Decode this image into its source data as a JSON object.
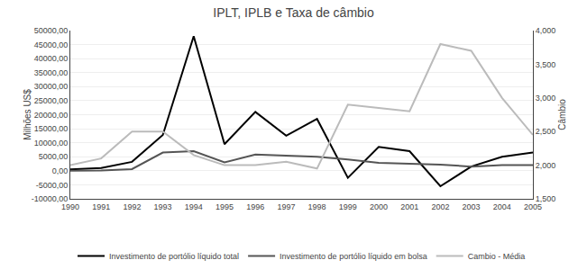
{
  "chart_data": {
    "type": "line",
    "title": "IPLT, IPLB e Taxa de câmbio",
    "x": [
      1990,
      1991,
      1992,
      1993,
      1994,
      1995,
      1996,
      1997,
      1998,
      1999,
      2000,
      2001,
      2002,
      2003,
      2004,
      2005
    ],
    "xlim": [
      1990,
      2005
    ],
    "xticks": [
      1990,
      1991,
      1992,
      1993,
      1994,
      1995,
      1996,
      1997,
      1998,
      1999,
      2000,
      2001,
      2002,
      2003,
      2004,
      2005
    ],
    "ylabel": "Milhões US$",
    "y2label": "Câmbio",
    "series": [
      {
        "name": "Investimento de portólio líquido total",
        "color": "#000000",
        "values": [
          500,
          1000,
          3200,
          12800,
          48000,
          9500,
          21000,
          12500,
          18500,
          -2500,
          8500,
          7000,
          -5500,
          1500,
          5000,
          6500
        ]
      },
      {
        "name": "Investimento de portólio líquido em bolsa",
        "color": "#555555",
        "values": [
          0,
          100,
          600,
          6500,
          7000,
          3000,
          5800,
          5500,
          5000,
          4000,
          2800,
          2500,
          2200,
          1500,
          2000,
          2000
        ]
      },
      {
        "name": "Cambio - Média",
        "color": "#bbbbbb",
        "axis": "y2",
        "values": [
          2.0,
          2.1,
          2.5,
          2.5,
          2.15,
          2.0,
          2.0,
          2.05,
          1.95,
          2.9,
          2.85,
          2.8,
          3.8,
          3.7,
          3.0,
          2.45
        ]
      }
    ],
    "ylim": [
      -10000,
      50000
    ],
    "yticks": [
      {
        "value": -10000,
        "label": "-10000,00"
      },
      {
        "value": -5000,
        "label": "-5000,00"
      },
      {
        "value": 0,
        "label": "0,00"
      },
      {
        "value": 5000,
        "label": "5000,00"
      },
      {
        "value": 10000,
        "label": "10000,00"
      },
      {
        "value": 15000,
        "label": "15000,00"
      },
      {
        "value": 20000,
        "label": "20000,00"
      },
      {
        "value": 25000,
        "label": "25000,00"
      },
      {
        "value": 30000,
        "label": "30000,00"
      },
      {
        "value": 35000,
        "label": "35000,00"
      },
      {
        "value": 40000,
        "label": "40000,00"
      },
      {
        "value": 45000,
        "label": "45000,00"
      },
      {
        "value": 50000,
        "label": "50000,00"
      }
    ],
    "y2lim": [
      1.5,
      4.0
    ],
    "y2ticks": [
      {
        "value": 1.5,
        "label": "1,500"
      },
      {
        "value": 2.0,
        "label": "2,000"
      },
      {
        "value": 2.5,
        "label": "2,500"
      },
      {
        "value": 3.0,
        "label": "3,000"
      },
      {
        "value": 3.5,
        "label": "3,500"
      },
      {
        "value": 4.0,
        "label": "4,000"
      }
    ],
    "grid": true,
    "legend": "bottom"
  }
}
